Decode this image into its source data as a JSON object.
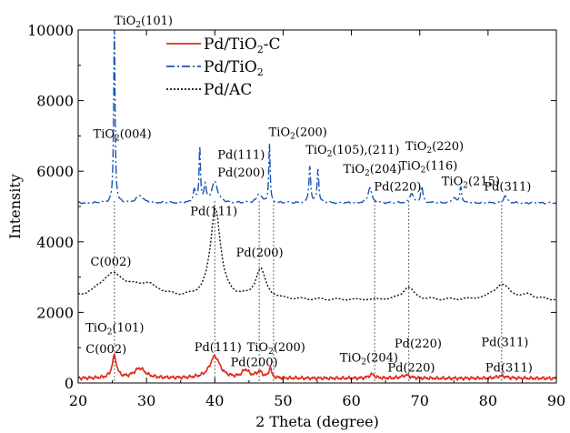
{
  "chart_data": {
    "type": "line",
    "title": "",
    "xlabel": "2 Theta (degree)",
    "ylabel": "Intensity",
    "xlim": [
      20,
      90
    ],
    "ylim": [
      0,
      10000
    ],
    "xticks": [
      "20",
      "30",
      "40",
      "50",
      "60",
      "70",
      "80",
      "90"
    ],
    "yticks": [
      "0",
      "2000",
      "4000",
      "6000",
      "8000",
      "10000"
    ],
    "legend_position": "top-center",
    "series": [
      {
        "name": "Pd/TiO2-C",
        "legend": {
          "pre": "Pd/TiO",
          "sub": "2",
          "post": "-C"
        },
        "color": "#e0281c",
        "style": "solid",
        "baseline": 130,
        "peaks": [
          [
            25.3,
            620,
            0.4
          ],
          [
            29.0,
            280,
            1.0
          ],
          [
            40.0,
            620,
            0.9
          ],
          [
            44.5,
            220,
            0.6
          ],
          [
            46.5,
            170,
            0.6
          ],
          [
            48.1,
            300,
            0.2
          ],
          [
            63.0,
            110,
            0.5
          ],
          [
            68.0,
            90,
            0.7
          ],
          [
            82.0,
            70,
            0.8
          ]
        ]
      },
      {
        "name": "Pd/TiO2",
        "legend": {
          "pre": "Pd/TiO",
          "sub": "2",
          "post": ""
        },
        "color": "#1a55b0",
        "style": "dashdot",
        "baseline": 5100,
        "peaks": [
          [
            25.3,
            4900,
            0.12
          ],
          [
            29.0,
            200,
            0.6
          ],
          [
            37.0,
            350,
            0.2
          ],
          [
            37.8,
            1550,
            0.12
          ],
          [
            38.6,
            450,
            0.2
          ],
          [
            40.0,
            600,
            0.5
          ],
          [
            46.5,
            260,
            0.4
          ],
          [
            48.0,
            1650,
            0.12
          ],
          [
            53.9,
            1050,
            0.15
          ],
          [
            55.1,
            950,
            0.15
          ],
          [
            62.7,
            450,
            0.3
          ],
          [
            68.8,
            280,
            0.3
          ],
          [
            70.3,
            450,
            0.2
          ],
          [
            75.0,
            150,
            0.3
          ],
          [
            76.0,
            480,
            0.15
          ],
          [
            82.5,
            200,
            0.3
          ]
        ]
      },
      {
        "name": "Pd/AC",
        "legend": {
          "pre": "Pd/AC",
          "sub": "",
          "post": ""
        },
        "color": "#111111",
        "style": "dotted",
        "baseline": 2350,
        "peaks": [
          [
            25.0,
            680,
            2.4
          ],
          [
            30.0,
            350,
            2.5
          ],
          [
            40.1,
            2550,
            0.9
          ],
          [
            46.7,
            830,
            0.9
          ],
          [
            68.3,
            350,
            1.0
          ],
          [
            82.0,
            430,
            1.5
          ],
          [
            86.0,
            120,
            1.0
          ]
        ]
      }
    ],
    "reference_lines": [
      25.3,
      40.0,
      46.5,
      48.6,
      63.4,
      68.4,
      82.0
    ],
    "annotations": [
      {
        "x": 25.3,
        "y": 10150,
        "parts": [
          [
            "TiO",
            ""
          ],
          [
            "2",
            "sub"
          ],
          [
            "(101)",
            ""
          ]
        ]
      },
      {
        "x": 22.2,
        "y": 6950,
        "parts": [
          [
            "TiO",
            ""
          ],
          [
            "2",
            "sub"
          ],
          [
            "(004)",
            ""
          ]
        ]
      },
      {
        "x": 40.4,
        "y": 6350,
        "parts": [
          [
            "Pd(111)",
            ""
          ]
        ]
      },
      {
        "x": 47.9,
        "y": 7000,
        "parts": [
          [
            "TiO",
            ""
          ],
          [
            "2",
            "sub"
          ],
          [
            "(200)",
            ""
          ]
        ]
      },
      {
        "x": 40.4,
        "y": 5850,
        "parts": [
          [
            "Pd(200)",
            ""
          ]
        ]
      },
      {
        "x": 53.3,
        "y": 6500,
        "parts": [
          [
            "TiO",
            ""
          ],
          [
            "2",
            "sub"
          ],
          [
            "(105),(211)",
            ""
          ]
        ]
      },
      {
        "x": 58.8,
        "y": 5950,
        "parts": [
          [
            "TiO",
            ""
          ],
          [
            "2",
            "sub"
          ],
          [
            "(204)",
            ""
          ]
        ]
      },
      {
        "x": 63.3,
        "y": 5450,
        "parts": [
          [
            "Pd(220)",
            ""
          ]
        ]
      },
      {
        "x": 67.9,
        "y": 6600,
        "parts": [
          [
            "TiO",
            ""
          ],
          [
            "2",
            "sub"
          ],
          [
            "(220)",
            ""
          ]
        ]
      },
      {
        "x": 67.0,
        "y": 6050,
        "parts": [
          [
            "TiO",
            ""
          ],
          [
            "2",
            "sub"
          ],
          [
            "(116)",
            ""
          ]
        ]
      },
      {
        "x": 73.2,
        "y": 5600,
        "parts": [
          [
            "TiO",
            ""
          ],
          [
            "2",
            "sub"
          ],
          [
            "(215)",
            ""
          ]
        ]
      },
      {
        "x": 79.4,
        "y": 5450,
        "parts": [
          [
            "Pd(311)",
            ""
          ]
        ]
      },
      {
        "x": 36.4,
        "y": 4750,
        "parts": [
          [
            "Pd(111)",
            ""
          ]
        ]
      },
      {
        "x": 21.8,
        "y": 3330,
        "parts": [
          [
            "C(002)",
            ""
          ]
        ]
      },
      {
        "x": 43.1,
        "y": 3580,
        "parts": [
          [
            "Pd(200)",
            ""
          ]
        ]
      },
      {
        "x": 66.3,
        "y": 1000,
        "parts": [
          [
            "Pd(220)",
            ""
          ]
        ]
      },
      {
        "x": 79.0,
        "y": 1050,
        "parts": [
          [
            "Pd(311)",
            ""
          ]
        ]
      },
      {
        "x": 21.1,
        "y": 1450,
        "parts": [
          [
            "TiO",
            ""
          ],
          [
            "2",
            "sub"
          ],
          [
            "(101)",
            ""
          ]
        ]
      },
      {
        "x": 21.1,
        "y": 850,
        "parts": [
          [
            "C(002)",
            ""
          ]
        ]
      },
      {
        "x": 37.0,
        "y": 900,
        "parts": [
          [
            "Pd(111)",
            ""
          ]
        ]
      },
      {
        "x": 44.7,
        "y": 900,
        "parts": [
          [
            "TiO",
            ""
          ],
          [
            "2",
            "sub"
          ],
          [
            "(200)",
            ""
          ]
        ]
      },
      {
        "x": 42.3,
        "y": 480,
        "parts": [
          [
            "Pd(200)",
            ""
          ]
        ]
      },
      {
        "x": 58.3,
        "y": 600,
        "parts": [
          [
            "TiO",
            ""
          ],
          [
            "2",
            "sub"
          ],
          [
            "(204)",
            ""
          ]
        ]
      },
      {
        "x": 65.3,
        "y": 320,
        "parts": [
          [
            "Pd(220)",
            ""
          ]
        ]
      },
      {
        "x": 79.6,
        "y": 320,
        "parts": [
          [
            "Pd(311)",
            ""
          ]
        ]
      }
    ]
  }
}
